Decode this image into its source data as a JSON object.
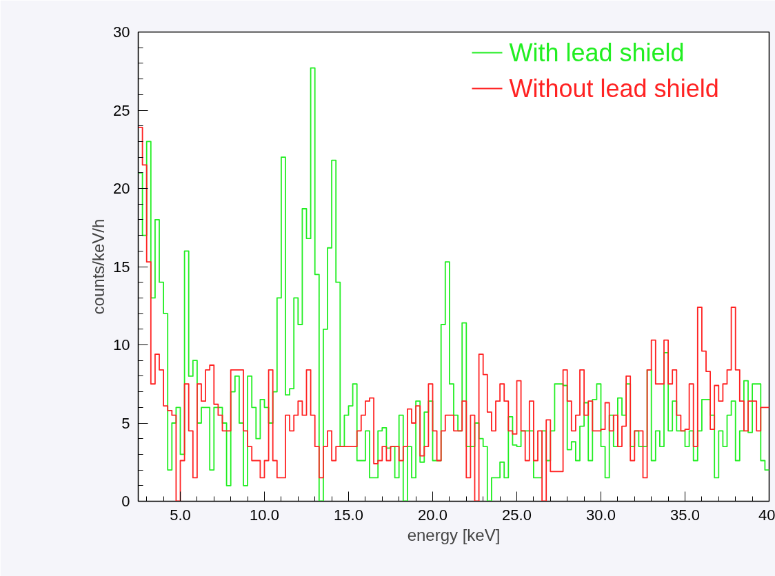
{
  "chart_data": {
    "type": "histogram",
    "xlabel": "energy [keV]",
    "ylabel": "counts/keV/h",
    "bins": [
      2.5,
      2.75,
      3.0,
      3.25,
      3.5,
      3.75,
      4.0,
      4.25,
      4.5,
      4.75,
      5.0,
      5.25,
      5.5,
      5.75,
      6.0,
      6.25,
      6.5,
      6.75,
      7.0,
      7.25,
      7.5,
      7.75,
      8.0,
      8.25,
      8.5,
      8.75,
      9.0,
      9.25,
      9.5,
      9.75,
      10.0,
      10.25,
      10.5,
      10.75,
      11.0,
      11.25,
      11.5,
      11.75,
      12.0,
      12.25,
      12.5,
      12.75,
      13.0,
      13.25,
      13.5,
      13.75,
      14.0,
      14.25,
      14.5,
      14.75,
      15.0,
      15.25,
      15.5,
      15.75,
      16.0,
      16.25,
      16.5,
      16.75,
      17.0,
      17.25,
      17.5,
      17.75,
      18.0,
      18.25,
      18.5,
      18.75,
      19.0,
      19.25,
      19.5,
      19.75,
      20.0,
      20.25,
      20.5,
      20.75,
      21.0,
      21.25,
      21.5,
      21.75,
      22.0,
      22.25,
      22.5,
      22.75,
      23.0,
      23.25,
      23.5,
      23.75,
      24.0,
      24.25,
      24.5,
      24.75,
      25.0,
      25.25,
      25.5,
      25.75,
      26.0,
      26.25,
      26.5,
      26.75,
      27.0,
      27.25,
      27.5,
      27.75,
      28.0,
      28.25,
      28.5,
      28.75,
      29.0,
      29.25,
      29.5,
      29.75,
      30.0,
      30.25,
      30.5,
      30.75,
      31.0,
      31.25,
      31.5,
      31.75,
      32.0,
      32.25,
      32.5,
      32.75,
      33.0,
      33.25,
      33.5,
      33.75,
      34.0,
      34.25,
      34.5,
      34.75,
      35.0,
      35.25,
      35.5,
      35.75,
      36.0,
      36.25,
      36.5,
      36.75,
      37.0,
      37.25,
      37.5,
      37.75,
      38.0,
      38.25,
      38.5,
      38.75,
      39.0,
      39.25,
      39.5,
      39.75,
      40.0
    ],
    "series": [
      {
        "name": "With lead shield",
        "color": "#22ee22",
        "values": [
          21,
          17,
          23,
          13,
          18,
          14,
          12,
          2,
          5,
          6,
          3,
          16,
          8,
          9,
          5,
          6,
          6,
          2,
          6,
          6,
          5,
          1,
          7,
          8,
          5,
          1,
          8,
          6,
          4,
          6.5,
          6,
          5,
          7,
          13,
          22,
          6.8,
          7.2,
          13,
          11.3,
          18.7,
          16.8,
          27.7,
          14.5,
          0,
          11,
          16.2,
          21.8,
          14,
          3.5,
          5.5,
          6.1,
          7.5,
          2.6,
          2.6,
          4.5,
          1.5,
          1.5,
          4.5,
          4.7,
          3.4,
          3.5,
          1.5,
          5.5,
          0,
          3.5,
          1.5,
          6.4,
          2.5,
          5.7,
          6.4,
          2.6,
          2.6,
          11.3,
          15.3,
          7.5,
          5.5,
          4.5,
          11.4,
          3.5,
          3.5,
          5.0,
          4.0,
          3.5,
          0,
          1.5,
          1.5,
          2.5,
          1.5,
          5.4,
          3.6,
          3.5,
          4.5,
          4.5,
          4.5,
          1.5,
          1.5,
          4.5,
          2.6,
          4.5,
          7.5,
          7.5,
          7.4,
          3.3,
          3.8,
          2.6,
          4.8,
          6.3,
          2.6,
          6.5,
          7.5,
          3.5,
          1.5,
          5.5,
          3.5,
          6.6,
          5.5,
          7.5,
          3.5,
          4.5,
          3.5,
          3.5,
          8.4,
          2.6,
          4.5,
          3.5,
          9.5,
          4.5,
          6.4,
          4.5,
          4.5,
          3.5,
          4.5,
          2.6,
          4.5,
          6.5,
          6.5,
          5.5,
          1.5,
          4.5,
          3.5,
          5.5,
          6.4,
          2.6,
          4.5,
          7.7,
          4.4,
          7.5,
          7.5,
          2.6,
          2
        ]
      },
      {
        "name": "Without lead shield",
        "color": "#ff2222",
        "values": [
          23.9,
          21.5,
          15.3,
          7.5,
          9.4,
          8.4,
          6.1,
          5.8,
          5.5,
          0,
          2.6,
          7.5,
          4.5,
          1.5,
          7.5,
          6.4,
          8.4,
          8.7,
          6.2,
          5.5,
          4.5,
          4.5,
          8.4,
          8.4,
          8.4,
          4.5,
          3.5,
          2.6,
          2.6,
          1.5,
          2.6,
          8.4,
          2.6,
          1.5,
          1.5,
          5.5,
          4.5,
          5.5,
          6.4,
          5.5,
          8.4,
          5.5,
          3.5,
          1.5,
          3.5,
          4.5,
          2.6,
          3.5,
          3.5,
          3.5,
          3.5,
          3.5,
          4.5,
          5.5,
          6.4,
          6.6,
          2.4,
          2.6,
          3.5,
          2.6,
          3.5,
          3.5,
          2.6,
          3.5,
          5.9,
          5.0,
          6.1,
          2.9,
          3.5,
          7.5,
          4.5,
          2.6,
          4.5,
          5.5,
          5.5,
          4.5,
          4.5,
          6.4,
          1.5,
          5.5,
          0,
          9.4,
          8.1,
          5.7,
          4.5,
          6.4,
          7.5,
          6.4,
          4.5,
          4.3,
          7.7,
          4.5,
          2.6,
          6.4,
          2.6,
          4.5,
          0,
          5.2,
          1.9,
          1.9,
          1.9,
          8.4,
          6.4,
          4.5,
          5.5,
          8.4,
          5.5,
          6.4,
          4.5,
          4.5,
          4.6,
          6.3,
          4.5,
          5.5,
          3.5,
          4.8,
          8.0,
          2.6,
          4.5,
          4.5,
          1.5,
          8.4,
          10.3,
          7.5,
          7.5,
          10.3,
          7.5,
          8.4,
          5.5,
          4.5,
          4.6,
          7.5,
          3.5,
          12.4,
          9.6,
          8.3,
          4.6,
          7.4,
          6.4,
          7.5,
          8.4,
          12.4,
          8.4,
          6.4,
          4.5,
          6.4,
          6.4,
          4.5,
          6,
          6
        ]
      }
    ],
    "xlim": [
      2.5,
      40
    ],
    "xticks": [
      {
        "value": 5,
        "label": "5.0"
      },
      {
        "value": 10,
        "label": "10.0"
      },
      {
        "value": 15,
        "label": "15.0"
      },
      {
        "value": 20,
        "label": "20.0"
      },
      {
        "value": 25,
        "label": "25.0"
      },
      {
        "value": 30,
        "label": "30.0"
      },
      {
        "value": 35,
        "label": "35.0"
      },
      40
    ],
    "ylim": [
      0,
      30
    ],
    "yticks": [
      0,
      5,
      10,
      15,
      20,
      25,
      30
    ],
    "grid": false,
    "legend": "top right"
  }
}
